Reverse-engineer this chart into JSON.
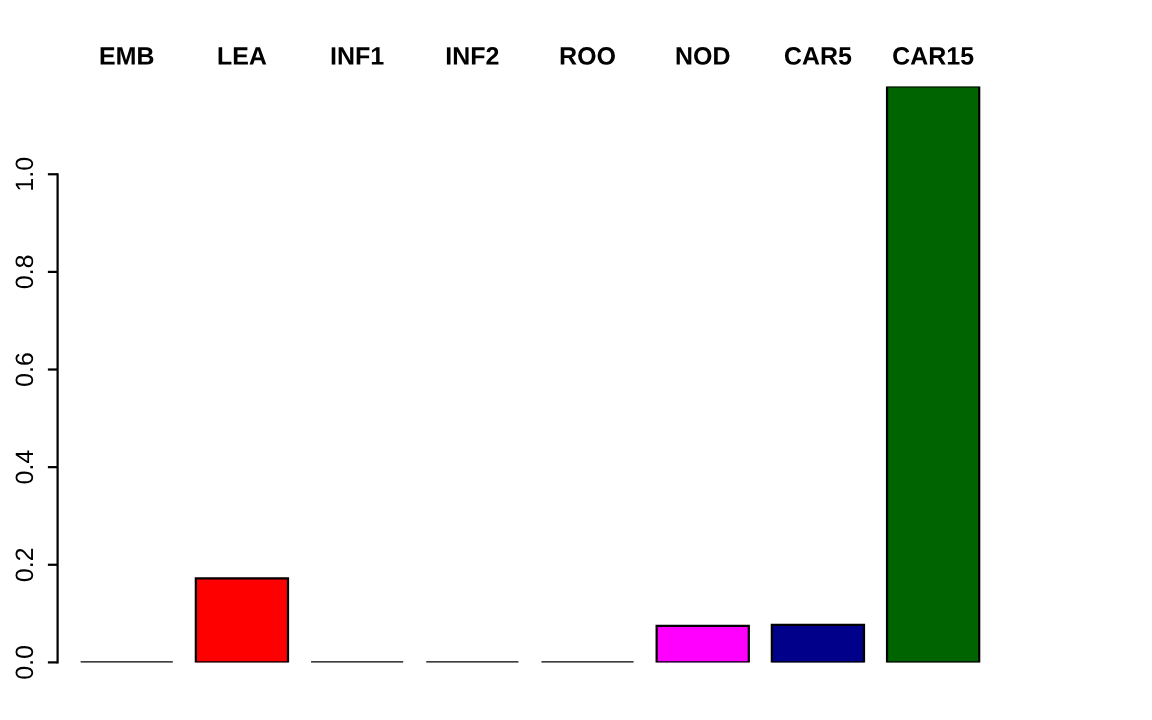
{
  "chart_data": {
    "type": "bar",
    "categories": [
      "EMB",
      "LEA",
      "INF1",
      "INF2",
      "ROO",
      "NOD",
      "CAR5",
      "CAR15"
    ],
    "values": [
      0,
      0.172,
      0,
      0,
      0,
      0.075,
      0.077,
      1.18
    ],
    "colors": [
      "#000000",
      "#ff0000",
      "#000000",
      "#000000",
      "#000000",
      "#ff00ff",
      "#00008b",
      "#006400"
    ],
    "ylim": [
      0,
      1.18
    ],
    "yticks": [
      {
        "value": 0,
        "label": "0.0"
      },
      {
        "value": 0.2,
        "label": "0.2"
      },
      {
        "value": 0.4,
        "label": "0.4"
      },
      {
        "value": 0.6,
        "label": "0.6"
      },
      {
        "value": 0.8,
        "label": "0.8"
      },
      {
        "value": 1.0,
        "label": "1.0"
      }
    ],
    "grid": false,
    "legend": false
  }
}
